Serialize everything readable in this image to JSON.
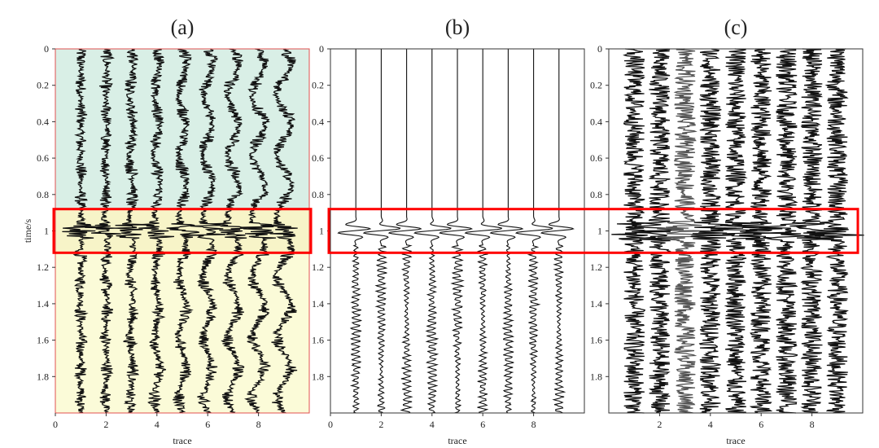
{
  "figure": {
    "highlight_color": "#ff0000"
  },
  "chart_data": [
    {
      "type": "line",
      "id": "a",
      "title": "(a)",
      "xlabel": "trace",
      "ylabel": "time/s",
      "xlim": [
        0,
        10
      ],
      "ylim": [
        0,
        2
      ],
      "xticks": [
        "0",
        "2",
        "4",
        "6",
        "8"
      ],
      "yticks": [
        "0",
        "0.2",
        "0.4",
        "0.6",
        "0.8",
        "1",
        "1.2",
        "1.4",
        "1.6",
        "1.8"
      ],
      "trace_positions": [
        1,
        2,
        3,
        4,
        5,
        6,
        7,
        8,
        9
      ],
      "regions": [
        {
          "name": "upper",
          "t_range": [
            0,
            0.88
          ],
          "color": "#d9efe6"
        },
        {
          "name": "middle",
          "t_range": [
            0.88,
            1.12
          ],
          "color": "#f7f4c8"
        },
        {
          "name": "lower",
          "t_range": [
            1.12,
            2.0
          ],
          "color": "#fbfbd8"
        }
      ],
      "frame_color": "#e05050",
      "style": "dense",
      "event_time": 1.0,
      "highlight_window": [
        0.88,
        1.12
      ]
    },
    {
      "type": "line",
      "id": "b",
      "title": "(b)",
      "xlabel": "trace",
      "ylabel": "",
      "xlim": [
        0,
        10
      ],
      "ylim": [
        0,
        2
      ],
      "xticks": [
        "0",
        "2",
        "4",
        "6",
        "8"
      ],
      "yticks": [
        "0",
        "0.2",
        "0.4",
        "0.6",
        "0.8",
        "1",
        "1.2",
        "1.4",
        "1.6",
        "1.8"
      ],
      "trace_positions": [
        1,
        2,
        3,
        4,
        5,
        6,
        7,
        8,
        9
      ],
      "style": "sparse",
      "event_time": 1.0,
      "highlight_window": [
        0.88,
        1.12
      ]
    },
    {
      "type": "line",
      "id": "c",
      "title": "(c)",
      "xlabel": "trace",
      "ylabel": "",
      "xlim": [
        0,
        10
      ],
      "ylim": [
        0,
        2
      ],
      "xticks": [
        "2",
        "4",
        "6",
        "8"
      ],
      "yticks": [
        "0",
        "0.2",
        "0.4",
        "0.6",
        "0.8",
        "1",
        "1.2",
        "1.4",
        "1.6",
        "1.8"
      ],
      "trace_positions": [
        1,
        2,
        3,
        4,
        5,
        6,
        7,
        8,
        9
      ],
      "style": "noisy",
      "event_time": 1.0,
      "highlight_window": [
        0.88,
        1.12
      ]
    }
  ]
}
